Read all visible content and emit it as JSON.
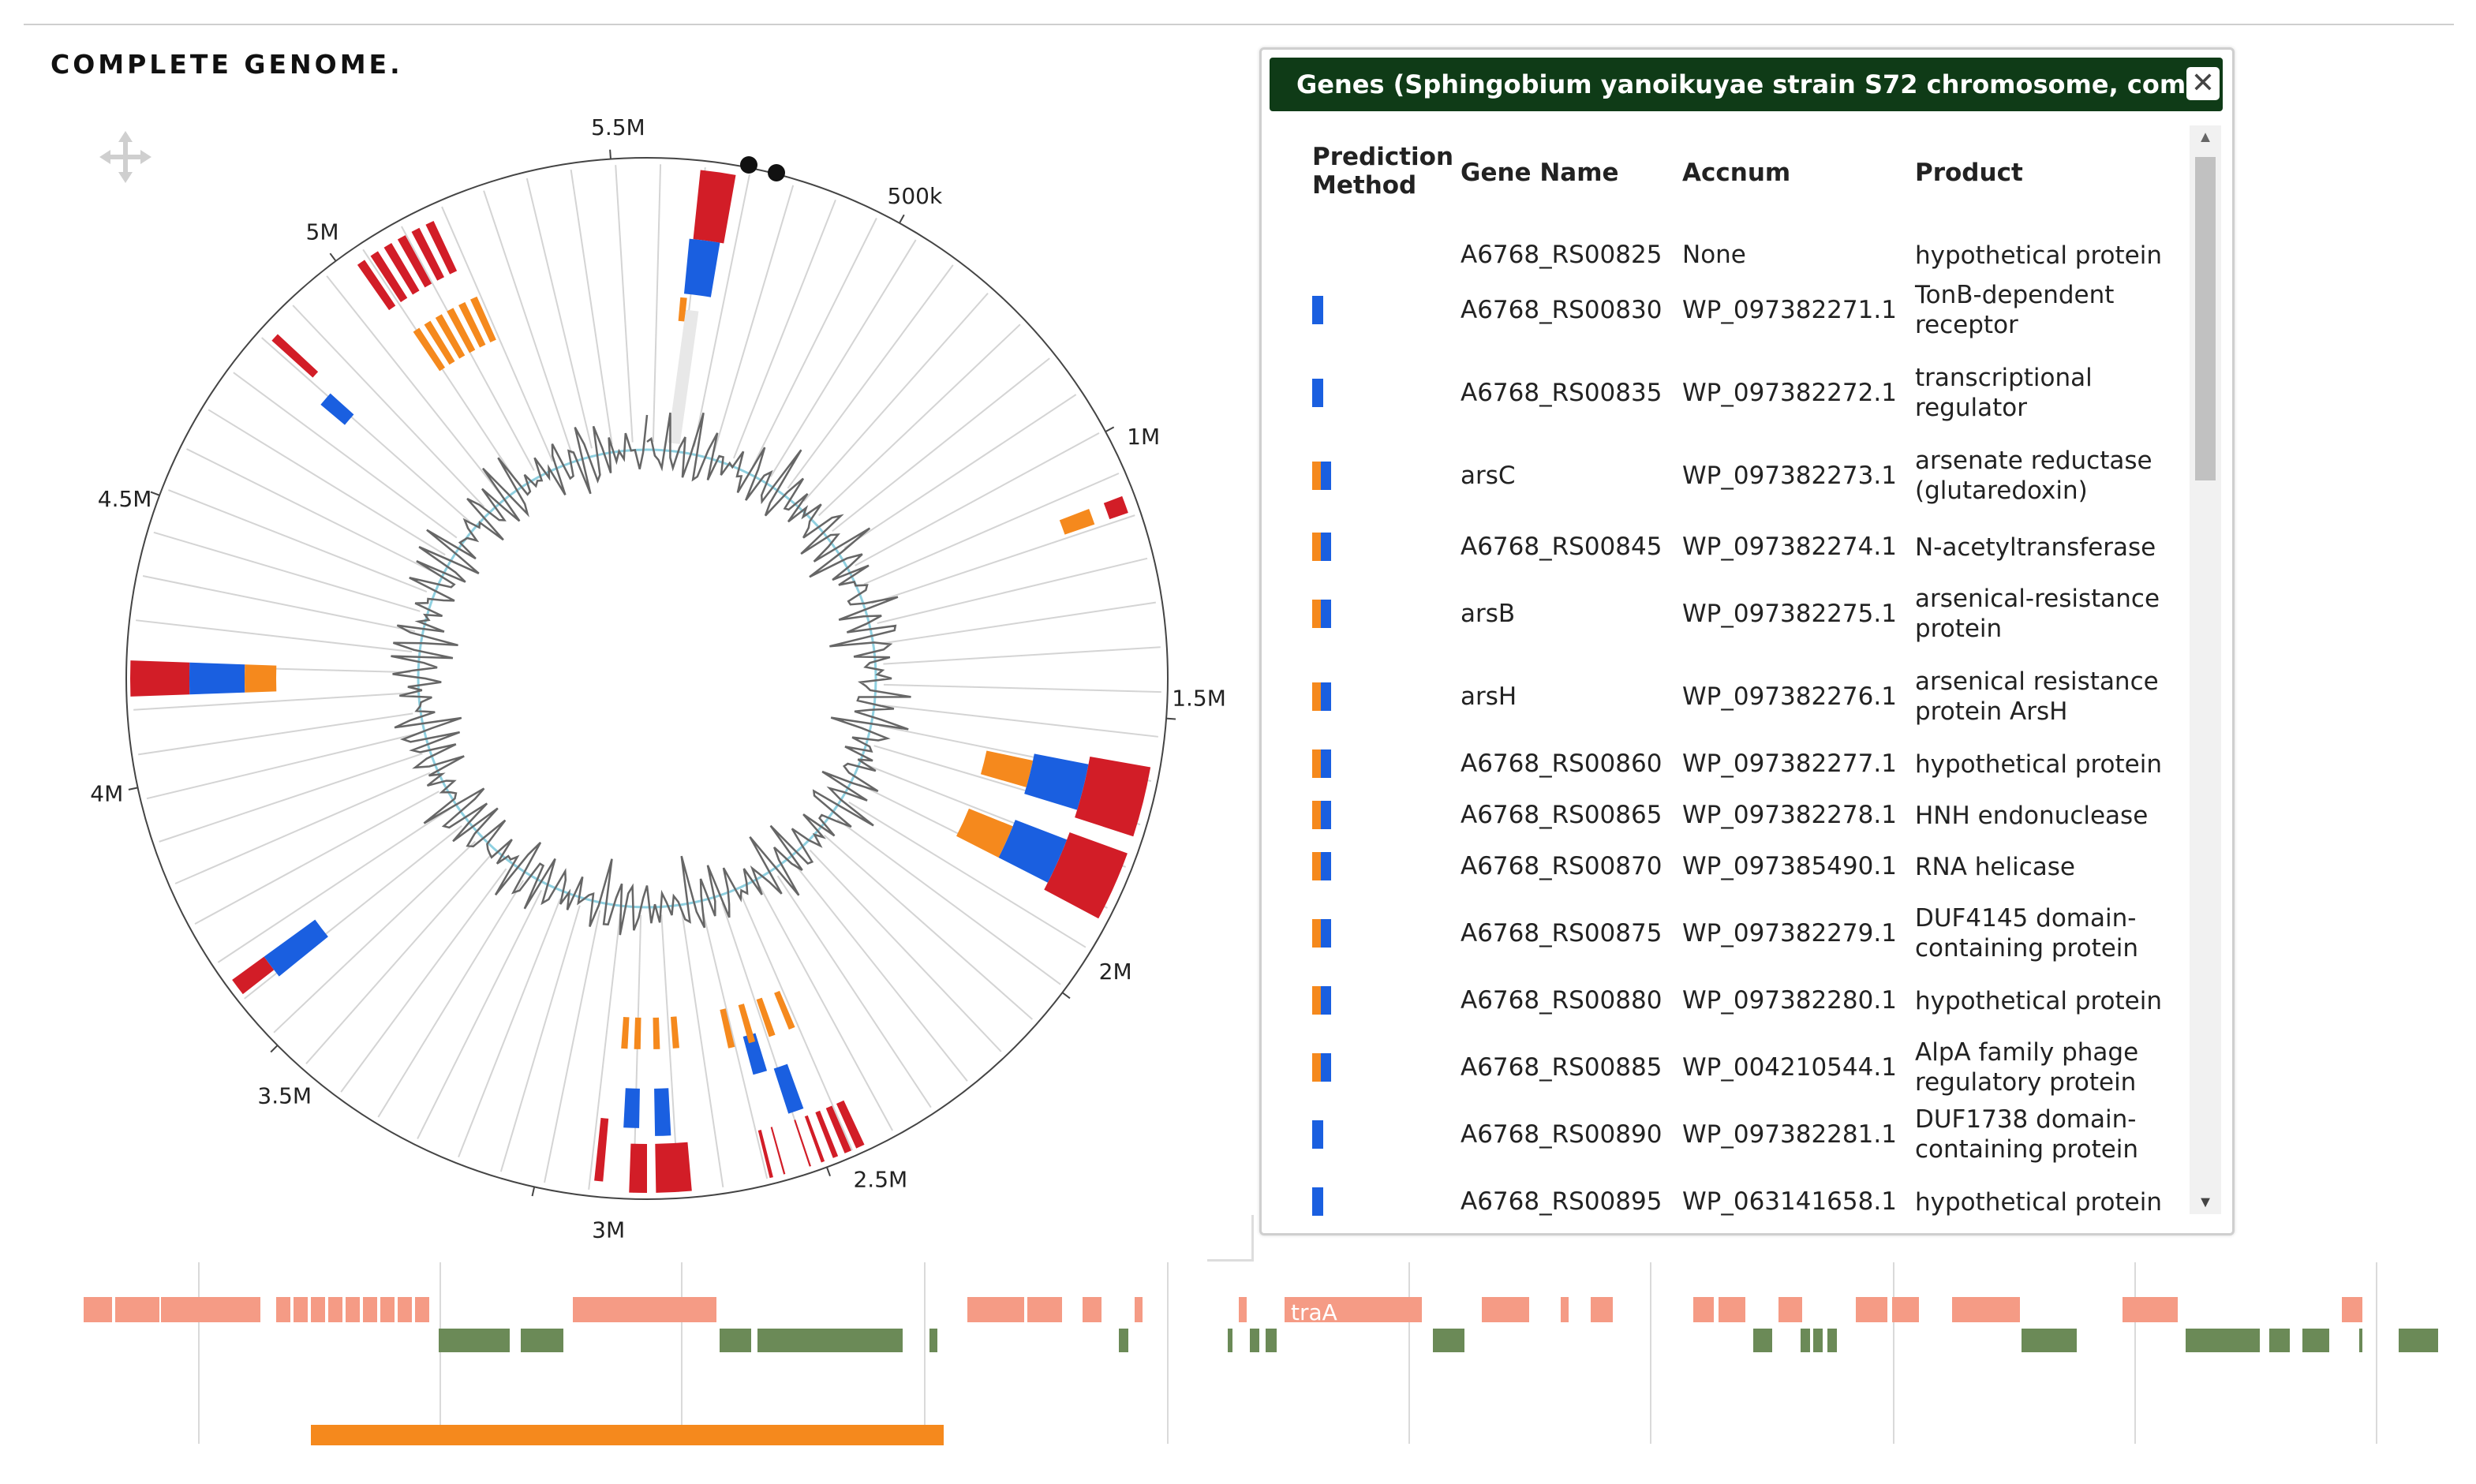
{
  "page": {
    "title": "COMPLETE GENOME."
  },
  "circular_plot": {
    "tick_labels": [
      "500k",
      "1M",
      "1.5M",
      "2M",
      "2.5M",
      "3M",
      "3.5M",
      "4M",
      "4.5M",
      "5M",
      "5.5M"
    ],
    "colors": {
      "red": "#d21d27",
      "blue": "#1a5fe0",
      "orange": "#f5891d",
      "gc_line": "#666666",
      "baseline": "#8fd0e0"
    }
  },
  "genes_panel": {
    "title": "Genes (Sphingobium yanoikuyae strain S72 chromosome, com...",
    "close_icon": "close-icon",
    "columns": {
      "prediction_method": "Prediction Method",
      "gene_name": "Gene Name",
      "accnum": "Accnum",
      "product": "Product"
    },
    "rows": [
      {
        "method": "none",
        "gene": "A6768_RS00825",
        "accnum": "None",
        "product": "hypothetical protein"
      },
      {
        "method": "blue",
        "gene": "A6768_RS00830",
        "accnum": "WP_097382271.1",
        "product": "TonB-dependent receptor"
      },
      {
        "method": "blue",
        "gene": "A6768_RS00835",
        "accnum": "WP_097382272.1",
        "product": "transcriptional regulator"
      },
      {
        "method": "both",
        "gene": "arsC",
        "accnum": "WP_097382273.1",
        "product": "arsenate reductase (glutaredoxin)"
      },
      {
        "method": "both",
        "gene": "A6768_RS00845",
        "accnum": "WP_097382274.1",
        "product": "N-acetyltransferase"
      },
      {
        "method": "both",
        "gene": "arsB",
        "accnum": "WP_097382275.1",
        "product": "arsenical-resistance protein"
      },
      {
        "method": "both",
        "gene": "arsH",
        "accnum": "WP_097382276.1",
        "product": "arsenical resistance protein ArsH"
      },
      {
        "method": "both",
        "gene": "A6768_RS00860",
        "accnum": "WP_097382277.1",
        "product": "hypothetical protein"
      },
      {
        "method": "both",
        "gene": "A6768_RS00865",
        "accnum": "WP_097382278.1",
        "product": "HNH endonuclease"
      },
      {
        "method": "both",
        "gene": "A6768_RS00870",
        "accnum": "WP_097385490.1",
        "product": "RNA helicase"
      },
      {
        "method": "both",
        "gene": "A6768_RS00875",
        "accnum": "WP_097382279.1",
        "product": "DUF4145 domain-containing protein"
      },
      {
        "method": "both",
        "gene": "A6768_RS00880",
        "accnum": "WP_097382280.1",
        "product": "hypothetical protein"
      },
      {
        "method": "both",
        "gene": "A6768_RS00885",
        "accnum": "WP_004210544.1",
        "product": "AlpA family phage regulatory protein"
      },
      {
        "method": "blue",
        "gene": "A6768_RS00890",
        "accnum": "WP_097382281.1",
        "product": "DUF1738 domain-containing protein"
      },
      {
        "method": "blue",
        "gene": "A6768_RS00895",
        "accnum": "WP_063141658.1",
        "product": "hypothetical protein"
      }
    ]
  },
  "linear_track": {
    "feature_label": "traA",
    "colors": {
      "forward": "#f59b85",
      "reverse": "#6b8a57",
      "region": "#f5891d"
    }
  }
}
